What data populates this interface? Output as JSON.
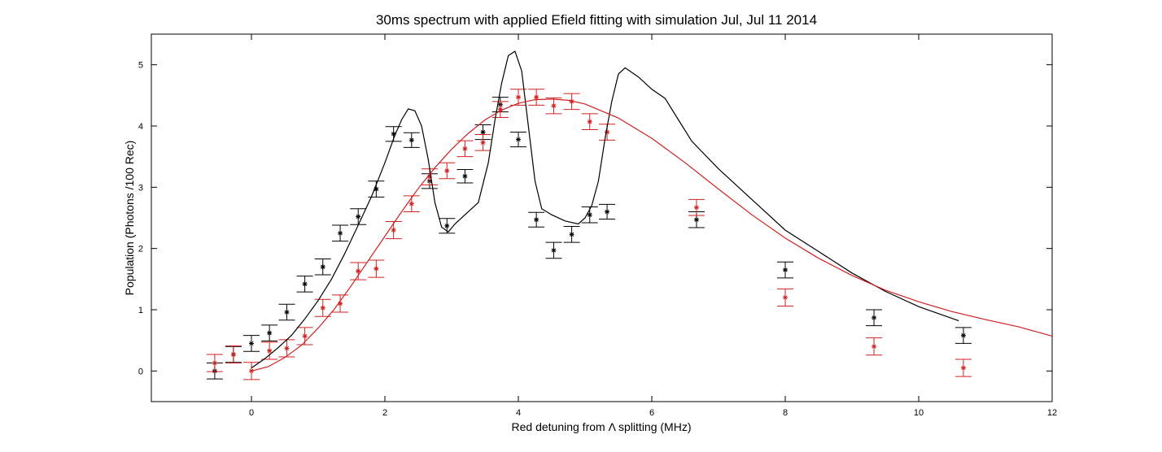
{
  "chart_data": {
    "type": "scatter",
    "title": "30ms spectrum with applied Efield fitting with simulation   Jul, Jul 11 2014",
    "xlabel": "Red detuning from Λ  splitting (MHz)",
    "ylabel": "Population (Photons /100 Rec)",
    "xlim": [
      -1.5,
      12
    ],
    "ylim": [
      -0.5,
      5.5
    ],
    "xticks": [
      0,
      2,
      4,
      6,
      8,
      10,
      12
    ],
    "yticks": [
      0,
      1,
      2,
      3,
      4,
      5
    ],
    "grid": false,
    "series": [
      {
        "kind": "errorbar",
        "color": "#000000",
        "x": [
          -0.55,
          -0.27,
          0.0,
          0.27,
          0.53,
          0.8,
          1.07,
          1.33,
          1.6,
          1.87,
          2.13,
          2.4,
          2.67,
          2.93,
          3.2,
          3.47,
          3.73,
          4.0,
          4.27,
          4.53,
          4.8,
          5.07,
          5.33,
          6.67,
          8.0,
          9.33,
          10.67
        ],
        "y": [
          0.0,
          0.27,
          0.45,
          0.62,
          0.96,
          1.42,
          1.7,
          2.25,
          2.52,
          2.97,
          3.87,
          3.77,
          3.1,
          2.37,
          3.18,
          3.9,
          4.35,
          3.78,
          2.47,
          1.97,
          2.23,
          2.55,
          2.6,
          2.47,
          1.65,
          0.87,
          0.58
        ],
        "err": [
          0.13,
          0.13,
          0.13,
          0.13,
          0.13,
          0.13,
          0.13,
          0.13,
          0.13,
          0.13,
          0.12,
          0.12,
          0.12,
          0.12,
          0.11,
          0.12,
          0.12,
          0.12,
          0.12,
          0.13,
          0.13,
          0.13,
          0.12,
          0.13,
          0.13,
          0.13,
          0.13
        ]
      },
      {
        "kind": "errorbar",
        "color": "#d02020",
        "x": [
          -0.55,
          -0.27,
          0.0,
          0.27,
          0.53,
          0.8,
          1.07,
          1.33,
          1.6,
          1.87,
          2.13,
          2.4,
          2.67,
          2.93,
          3.2,
          3.47,
          3.73,
          4.0,
          4.27,
          4.53,
          4.8,
          5.07,
          5.33,
          6.67,
          8.0,
          9.33,
          10.67
        ],
        "y": [
          0.13,
          0.27,
          0.0,
          0.33,
          0.37,
          0.57,
          1.03,
          1.1,
          1.63,
          1.67,
          2.3,
          2.73,
          3.17,
          3.27,
          3.63,
          3.73,
          4.27,
          4.47,
          4.47,
          4.33,
          4.4,
          4.07,
          3.9,
          2.67,
          1.2,
          0.4,
          0.05
        ],
        "err": [
          0.14,
          0.14,
          0.14,
          0.14,
          0.14,
          0.14,
          0.14,
          0.14,
          0.14,
          0.14,
          0.14,
          0.13,
          0.13,
          0.13,
          0.13,
          0.13,
          0.13,
          0.13,
          0.13,
          0.13,
          0.13,
          0.13,
          0.13,
          0.13,
          0.14,
          0.14,
          0.14
        ]
      },
      {
        "kind": "line",
        "color": "#000000",
        "x": [
          0.0,
          0.2,
          0.4,
          0.6,
          0.8,
          1.0,
          1.2,
          1.4,
          1.6,
          1.8,
          2.0,
          2.15,
          2.25,
          2.35,
          2.45,
          2.55,
          2.65,
          2.75,
          2.85,
          2.95,
          3.05,
          3.2,
          3.4,
          3.55,
          3.65,
          3.75,
          3.85,
          3.95,
          4.05,
          4.15,
          4.25,
          4.35,
          4.5,
          4.7,
          4.9,
          5.0,
          5.1,
          5.2,
          5.3,
          5.4,
          5.5,
          5.6,
          5.8,
          6.0,
          6.2,
          6.4,
          6.6,
          7.0,
          7.5,
          8.0,
          8.5,
          9.0,
          9.5,
          10.0,
          10.6
        ],
        "y": [
          0.05,
          0.2,
          0.38,
          0.58,
          0.85,
          1.15,
          1.5,
          1.92,
          2.38,
          2.85,
          3.4,
          3.85,
          4.1,
          4.28,
          4.25,
          4.0,
          3.45,
          2.75,
          2.35,
          2.27,
          2.4,
          2.55,
          2.75,
          3.4,
          4.1,
          4.7,
          5.15,
          5.22,
          4.9,
          4.0,
          3.1,
          2.65,
          2.55,
          2.45,
          2.4,
          2.5,
          2.7,
          3.1,
          3.8,
          4.4,
          4.85,
          4.95,
          4.8,
          4.6,
          4.45,
          4.1,
          3.75,
          3.3,
          2.8,
          2.3,
          1.95,
          1.6,
          1.3,
          1.05,
          0.82
        ]
      },
      {
        "kind": "line",
        "color": "#d02020",
        "x": [
          0.0,
          0.25,
          0.5,
          0.75,
          1.0,
          1.25,
          1.5,
          1.75,
          2.0,
          2.25,
          2.5,
          2.75,
          3.0,
          3.25,
          3.5,
          3.75,
          4.0,
          4.25,
          4.5,
          4.75,
          5.0,
          5.5,
          6.0,
          6.5,
          7.0,
          7.5,
          8.0,
          8.5,
          9.0,
          9.5,
          10.0,
          10.5,
          11.0,
          11.5,
          12.0
        ],
        "y": [
          0.0,
          0.07,
          0.22,
          0.42,
          0.7,
          1.02,
          1.4,
          1.8,
          2.2,
          2.6,
          2.98,
          3.32,
          3.62,
          3.88,
          4.1,
          4.26,
          4.37,
          4.43,
          4.44,
          4.42,
          4.36,
          4.13,
          3.8,
          3.4,
          2.97,
          2.55,
          2.17,
          1.84,
          1.56,
          1.32,
          1.13,
          0.97,
          0.84,
          0.72,
          0.57
        ]
      }
    ]
  }
}
